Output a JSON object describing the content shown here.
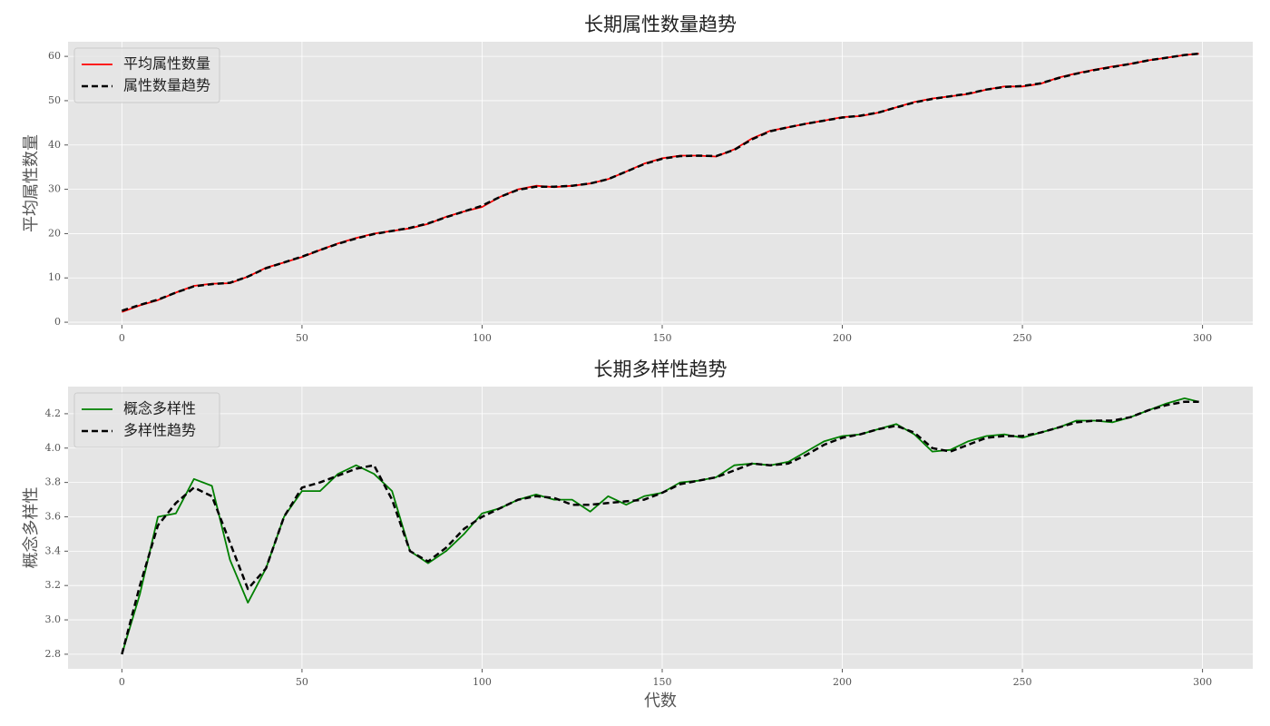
{
  "chart_data": [
    {
      "type": "line",
      "title": "长期属性数量趋势",
      "ylabel": "平均属性数量",
      "grid": true,
      "legend": "upper left",
      "xlim": [
        -14.95,
        313.95
      ],
      "xticks": [
        0,
        50,
        100,
        150,
        200,
        250,
        300
      ],
      "ylim": [
        -0.6,
        63.3
      ],
      "yticks": [
        0,
        10,
        20,
        30,
        40,
        50,
        60
      ],
      "x": [
        0,
        5,
        10,
        15,
        20,
        25,
        30,
        35,
        40,
        45,
        50,
        55,
        60,
        65,
        70,
        75,
        80,
        85,
        90,
        95,
        100,
        105,
        110,
        115,
        120,
        125,
        130,
        135,
        140,
        145,
        150,
        155,
        160,
        165,
        170,
        175,
        180,
        185,
        190,
        195,
        200,
        205,
        210,
        215,
        220,
        225,
        230,
        235,
        240,
        245,
        250,
        255,
        260,
        265,
        270,
        275,
        280,
        285,
        290,
        295,
        299
      ],
      "series": [
        {
          "name": "平均属性数量",
          "color": "#ff0000",
          "linestyle": "solid",
          "values": [
            2.3,
            3.8,
            5,
            6.7,
            8.2,
            8.7,
            8.8,
            10.3,
            12.3,
            13.5,
            14.7,
            16.3,
            17.8,
            19,
            20,
            20.6,
            21.2,
            22.2,
            23.8,
            25,
            26,
            28.3,
            30,
            30.8,
            30.5,
            30.8,
            31.3,
            32.3,
            34,
            35.8,
            37,
            37.6,
            37.6,
            37.4,
            39,
            41.5,
            43.2,
            44,
            44.8,
            45.5,
            46.3,
            46.5,
            47.3,
            48.5,
            49.7,
            50.5,
            51,
            51.5,
            52.5,
            53.2,
            53.2,
            53.8,
            55.2,
            56.2,
            57,
            57.7,
            58.3,
            59.1,
            59.7,
            60.3,
            60.6
          ]
        },
        {
          "name": "属性数量趋势",
          "color": "#000000",
          "linestyle": "dashed",
          "values": [
            2.6,
            3.9,
            5.1,
            6.7,
            8.1,
            8.6,
            8.9,
            10.3,
            12.2,
            13.5,
            14.8,
            16.3,
            17.7,
            18.9,
            19.9,
            20.6,
            21.3,
            22.3,
            23.7,
            25,
            26.3,
            28.3,
            29.9,
            30.6,
            30.6,
            30.8,
            31.3,
            32.3,
            34,
            35.7,
            36.9,
            37.5,
            37.6,
            37.5,
            38.9,
            41.3,
            43.1,
            44,
            44.8,
            45.5,
            46.2,
            46.6,
            47.3,
            48.5,
            49.6,
            50.4,
            51,
            51.6,
            52.5,
            53.1,
            53.3,
            53.9,
            55.1,
            56.1,
            56.9,
            57.6,
            58.3,
            59.1,
            59.7,
            60.3,
            60.6
          ]
        }
      ]
    },
    {
      "type": "line",
      "title": "长期多样性趋势",
      "ylabel": "概念多样性",
      "xlabel": "代数",
      "grid": true,
      "legend": "upper left",
      "xlim": [
        -14.95,
        313.95
      ],
      "xticks": [
        0,
        50,
        100,
        150,
        200,
        250,
        300
      ],
      "ylim": [
        2.715,
        4.358
      ],
      "yticks": [
        2.8,
        {
          "value": 3,
          "label": "3.0"
        },
        3.2,
        3.4,
        3.6,
        3.8,
        {
          "value": 4,
          "label": "4.0"
        },
        4.2
      ],
      "x": [
        0,
        5,
        10,
        15,
        20,
        25,
        30,
        35,
        40,
        45,
        50,
        55,
        60,
        65,
        70,
        75,
        80,
        85,
        90,
        95,
        100,
        105,
        110,
        115,
        120,
        125,
        130,
        135,
        140,
        145,
        150,
        155,
        160,
        165,
        170,
        175,
        180,
        185,
        190,
        195,
        200,
        205,
        210,
        215,
        220,
        225,
        230,
        235,
        240,
        245,
        250,
        255,
        260,
        265,
        270,
        275,
        280,
        285,
        290,
        295,
        299
      ],
      "series": [
        {
          "name": "概念多样性",
          "color": "#008000",
          "linestyle": "solid",
          "values": [
            2.8,
            3.15,
            3.6,
            3.62,
            3.82,
            3.78,
            3.35,
            3.1,
            3.3,
            3.6,
            3.75,
            3.75,
            3.85,
            3.9,
            3.85,
            3.75,
            3.4,
            3.33,
            3.4,
            3.5,
            3.62,
            3.65,
            3.7,
            3.73,
            3.7,
            3.7,
            3.63,
            3.72,
            3.67,
            3.72,
            3.74,
            3.8,
            3.81,
            3.83,
            3.9,
            3.91,
            3.9,
            3.92,
            3.98,
            4.04,
            4.07,
            4.08,
            4.11,
            4.14,
            4.08,
            3.98,
            3.99,
            4.04,
            4.07,
            4.08,
            4.06,
            4.09,
            4.12,
            4.16,
            4.16,
            4.15,
            4.18,
            4.22,
            4.26,
            4.29,
            4.27
          ]
        },
        {
          "name": "多样性趋势",
          "color": "#000000",
          "linestyle": "dashed",
          "values": [
            2.8,
            3.2,
            3.55,
            3.68,
            3.77,
            3.72,
            3.45,
            3.18,
            3.3,
            3.6,
            3.77,
            3.8,
            3.84,
            3.88,
            3.9,
            3.7,
            3.4,
            3.34,
            3.42,
            3.53,
            3.6,
            3.65,
            3.7,
            3.72,
            3.71,
            3.67,
            3.67,
            3.68,
            3.69,
            3.7,
            3.74,
            3.79,
            3.81,
            3.83,
            3.87,
            3.91,
            3.9,
            3.91,
            3.96,
            4.02,
            4.06,
            4.08,
            4.11,
            4.13,
            4.09,
            4.0,
            3.98,
            4.02,
            4.06,
            4.07,
            4.07,
            4.09,
            4.12,
            4.15,
            4.16,
            4.16,
            4.18,
            4.22,
            4.25,
            4.27,
            4.27
          ]
        }
      ]
    }
  ]
}
